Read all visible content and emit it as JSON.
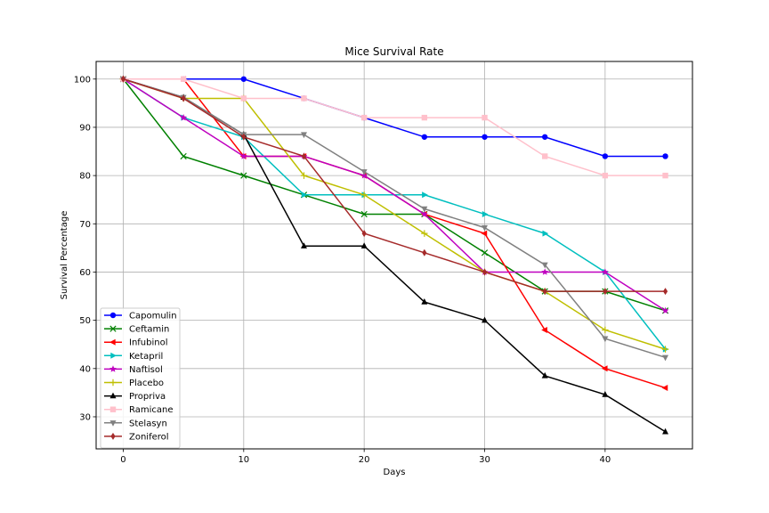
{
  "chart_data": {
    "type": "line",
    "title": "Mice Survival Rate",
    "xlabel": "Days",
    "ylabel": "Survival Percentage",
    "xlim": [
      -2.25,
      47.25
    ],
    "ylim": [
      23.35,
      103.65
    ],
    "xticks": [
      0,
      10,
      20,
      30,
      40
    ],
    "yticks": [
      30,
      40,
      50,
      60,
      70,
      80,
      90,
      100
    ],
    "grid": true,
    "legend_position": "lower-left",
    "x": [
      0,
      5,
      10,
      15,
      20,
      25,
      30,
      35,
      40,
      45
    ],
    "series": [
      {
        "name": "Capomulin",
        "color": "#0000ff",
        "marker": "circle",
        "values": [
          100,
          100,
          100,
          96,
          92,
          88,
          88,
          88,
          84,
          84
        ]
      },
      {
        "name": "Ceftamin",
        "color": "#008000",
        "marker": "x",
        "values": [
          100,
          84,
          80,
          76,
          72,
          72,
          64,
          56,
          56,
          52
        ]
      },
      {
        "name": "Infubinol",
        "color": "#ff0000",
        "marker": "triangle-left",
        "values": [
          100,
          100,
          84,
          84,
          80,
          72,
          68,
          48,
          40,
          36
        ]
      },
      {
        "name": "Ketapril",
        "color": "#00bfbf",
        "marker": "triangle-right",
        "values": [
          100,
          92,
          88,
          76,
          76,
          76,
          72,
          68,
          60,
          44
        ]
      },
      {
        "name": "Naftisol",
        "color": "#bf00bf",
        "marker": "star",
        "values": [
          100,
          92,
          84,
          84,
          80,
          72,
          60,
          60,
          60,
          52
        ]
      },
      {
        "name": "Placebo",
        "color": "#bfbf00",
        "marker": "plus",
        "values": [
          100,
          96,
          96,
          80,
          76,
          68,
          60,
          56,
          48,
          44
        ]
      },
      {
        "name": "Propriva",
        "color": "#000000",
        "marker": "triangle-up",
        "values": [
          100,
          96.2,
          88.5,
          65.4,
          65.4,
          53.8,
          50,
          38.5,
          34.6,
          26.9
        ]
      },
      {
        "name": "Ramicane",
        "color": "#ffc0cb",
        "marker": "square",
        "values": [
          100,
          100,
          96,
          96,
          92,
          92,
          92,
          84,
          80,
          80
        ]
      },
      {
        "name": "Stelasyn",
        "color": "#808080",
        "marker": "triangle-down",
        "values": [
          100,
          96.2,
          88.5,
          88.5,
          80.8,
          73.1,
          69.2,
          61.5,
          46.2,
          42.3
        ]
      },
      {
        "name": "Zoniferol",
        "color": "#a52a2a",
        "marker": "diamond",
        "values": [
          100,
          96,
          88,
          84,
          68,
          64,
          60,
          56,
          56,
          56
        ]
      }
    ]
  }
}
